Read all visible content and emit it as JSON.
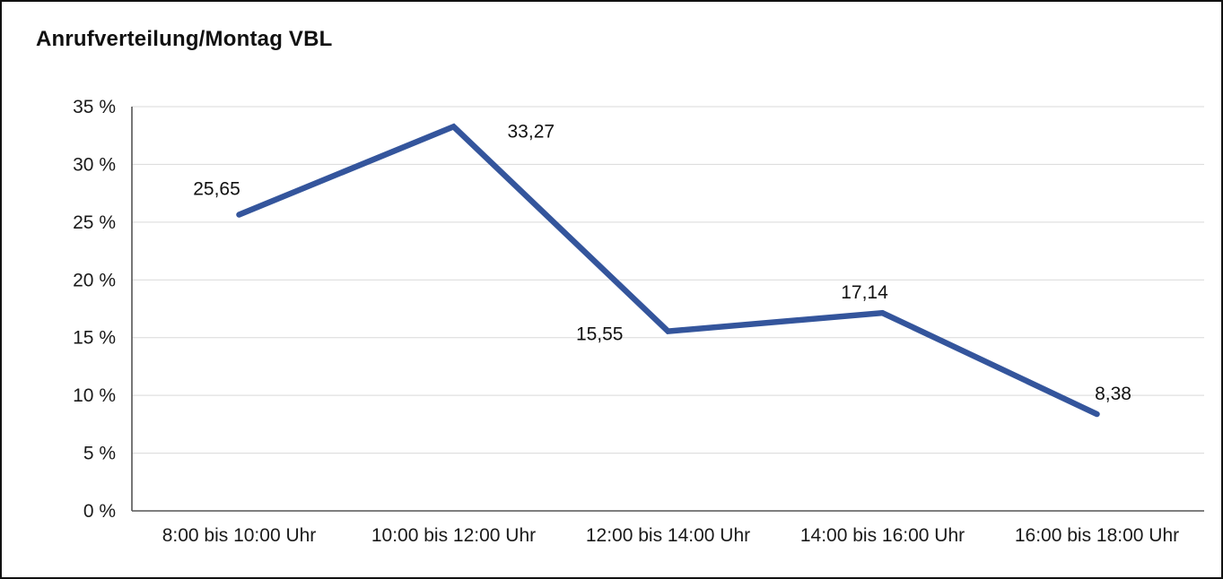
{
  "chart_data": {
    "type": "line",
    "title": "Anrufverteilung/Montag VBL",
    "categories": [
      "8:00 bis 10:00 Uhr",
      "10:00 bis 12:00 Uhr",
      "12:00 bis 14:00 Uhr",
      "14:00 bis 16:00 Uhr",
      "16:00 bis 18:00 Uhr"
    ],
    "values": [
      25.65,
      33.27,
      15.55,
      17.14,
      8.38
    ],
    "value_labels": [
      "25,65",
      "33,27",
      "15,55",
      "17,14",
      "8,38"
    ],
    "xlabel": "",
    "ylabel": "",
    "ylim": [
      0,
      35
    ],
    "ytick_step": 5,
    "ytick_labels": [
      "0 %",
      "5 %",
      "10 %",
      "15 %",
      "20 %",
      "25 %",
      "30 %",
      "35 %"
    ],
    "grid": true,
    "legend": "none",
    "line_color": "#34559C",
    "grid_color": "#d9d9d9",
    "axis_color": "#555555",
    "label_offsets": [
      [
        -25,
        -22,
        "middle"
      ],
      [
        60,
        12,
        "start"
      ],
      [
        -50,
        10,
        "end"
      ],
      [
        -20,
        -16,
        "middle"
      ],
      [
        18,
        -16,
        "middle"
      ]
    ]
  }
}
